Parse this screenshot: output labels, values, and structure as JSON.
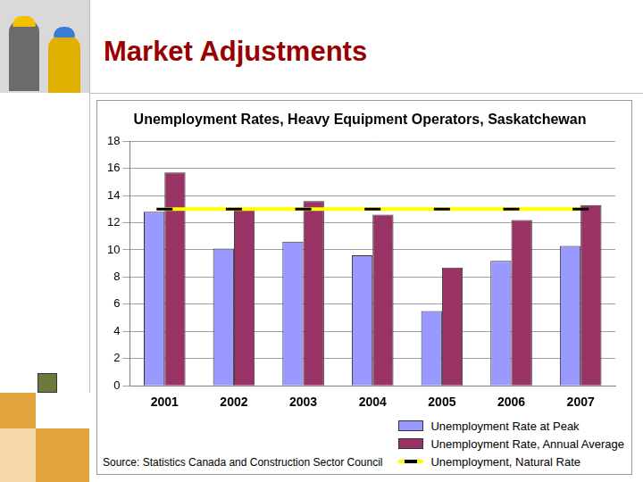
{
  "slide_title": "Market Adjustments",
  "chart_data": {
    "type": "bar",
    "title": "Unemployment Rates, Heavy Equipment Operators, Saskatchewan",
    "source": "Source:  Statistics Canada and Construction Sector Council",
    "categories": [
      "2001",
      "2002",
      "2003",
      "2004",
      "2005",
      "2006",
      "2007"
    ],
    "series": [
      {
        "name": "Unemployment Rate at Peak",
        "color": "#9999ff",
        "values": [
          12.8,
          10.1,
          10.6,
          9.6,
          5.5,
          9.2,
          10.3
        ]
      },
      {
        "name": "Unemployment Rate, Annual Average",
        "color": "#993366",
        "values": [
          15.7,
          13.1,
          13.6,
          12.6,
          8.7,
          12.2,
          13.3
        ]
      },
      {
        "name": "Unemployment, Natural Rate",
        "color": "#ffff00",
        "type": "line",
        "marker": "dash",
        "line_style": "solid",
        "values": [
          13,
          13,
          13,
          13,
          13,
          13,
          13
        ]
      }
    ],
    "ylim": [
      0,
      18
    ],
    "yticks": [
      0,
      2,
      4,
      6,
      8,
      10,
      12,
      14,
      16,
      18
    ],
    "grid": true,
    "legend": "bottom"
  }
}
